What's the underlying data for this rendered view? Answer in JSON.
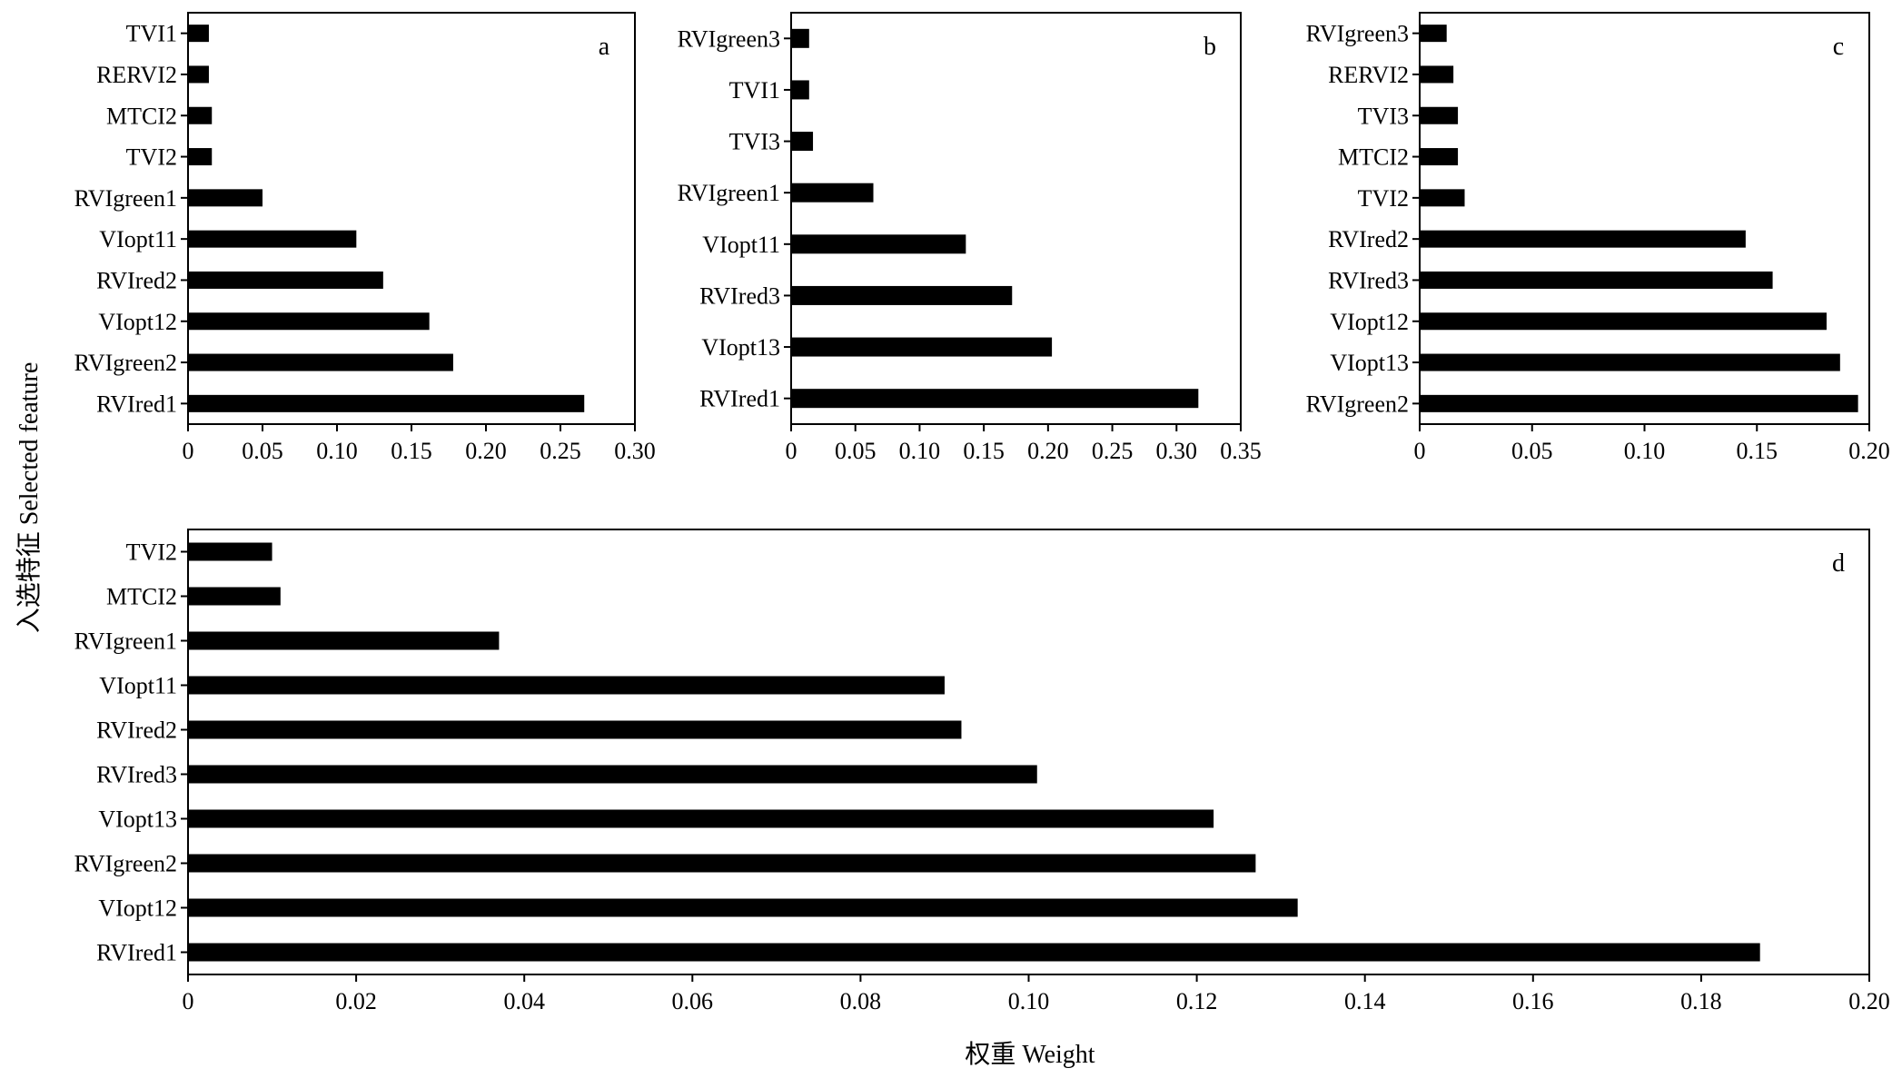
{
  "axis_labels": {
    "x": "权重 Weight",
    "y": "入选特征 Selected feature"
  },
  "chart_data": [
    {
      "type": "bar",
      "orientation": "horizontal",
      "panel": "a",
      "categories": [
        "TVI1",
        "RERVI2",
        "MTCI2",
        "TVI2",
        "RVIgreen1",
        "VIopt11",
        "RVIred2",
        "VIopt12",
        "RVIgreen2",
        "RVIred1"
      ],
      "values": [
        0.014,
        0.014,
        0.016,
        0.016,
        0.05,
        0.113,
        0.131,
        0.162,
        0.178,
        0.266
      ],
      "xlim": [
        0,
        0.3
      ],
      "xticks": [
        0,
        0.05,
        0.1,
        0.15,
        0.2,
        0.25,
        0.3
      ],
      "xtick_labels": [
        "0",
        "0.05",
        "0.10",
        "0.15",
        "0.20",
        "0.25",
        "0.30"
      ],
      "color": "#000000"
    },
    {
      "type": "bar",
      "orientation": "horizontal",
      "panel": "b",
      "categories": [
        "RVIgreen3",
        "TVI1",
        "TVI3",
        "RVIgreen1",
        "VIopt11",
        "RVIred3",
        "VIopt13",
        "RVIred1"
      ],
      "values": [
        0.014,
        0.014,
        0.017,
        0.064,
        0.136,
        0.172,
        0.203,
        0.317
      ],
      "xlim": [
        0,
        0.35
      ],
      "xticks": [
        0,
        0.05,
        0.1,
        0.15,
        0.2,
        0.25,
        0.3,
        0.35
      ],
      "xtick_labels": [
        "0",
        "0.05",
        "0.10",
        "0.15",
        "0.20",
        "0.25",
        "0.30",
        "0.35"
      ],
      "color": "#000000"
    },
    {
      "type": "bar",
      "orientation": "horizontal",
      "panel": "c",
      "categories": [
        "RVIgreen3",
        "RERVI2",
        "TVI3",
        "MTCI2",
        "TVI2",
        "RVIred2",
        "RVIred3",
        "VIopt12",
        "VIopt13",
        "RVIgreen2"
      ],
      "values": [
        0.012,
        0.015,
        0.017,
        0.017,
        0.02,
        0.145,
        0.157,
        0.181,
        0.187,
        0.195
      ],
      "xlim": [
        0,
        0.2
      ],
      "xticks": [
        0,
        0.05,
        0.1,
        0.15,
        0.2
      ],
      "xtick_labels": [
        "0",
        "0.05",
        "0.10",
        "0.15",
        "0.20"
      ],
      "color": "#000000"
    },
    {
      "type": "bar",
      "orientation": "horizontal",
      "panel": "d",
      "categories": [
        "TVI2",
        "MTCI2",
        "RVIgreen1",
        "VIopt11",
        "RVIred2",
        "RVIred3",
        "VIopt13",
        "RVIgreen2",
        "VIopt12",
        "RVIred1"
      ],
      "values": [
        0.01,
        0.011,
        0.037,
        0.09,
        0.092,
        0.101,
        0.122,
        0.127,
        0.132,
        0.187
      ],
      "xlim": [
        0,
        0.2
      ],
      "xticks": [
        0,
        0.02,
        0.04,
        0.06,
        0.08,
        0.1,
        0.12,
        0.14,
        0.16,
        0.18,
        0.2
      ],
      "xtick_labels": [
        "0",
        "0.02",
        "0.04",
        "0.06",
        "0.08",
        "0.10",
        "0.12",
        "0.14",
        "0.16",
        "0.18",
        "0.20"
      ],
      "color": "#000000"
    }
  ]
}
